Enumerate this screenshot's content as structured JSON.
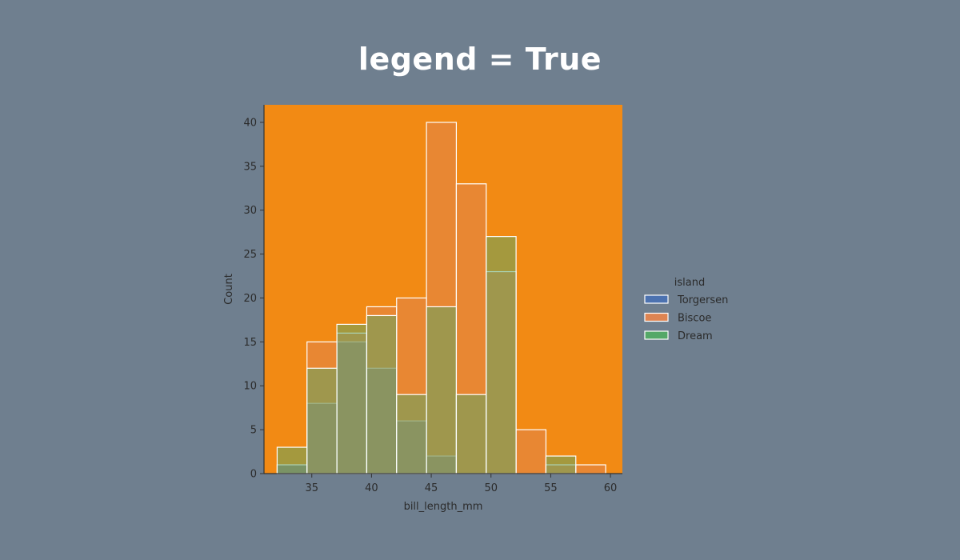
{
  "page": {
    "title": "legend = True",
    "background": "#6f7f8f"
  },
  "chart_data": {
    "type": "histogram",
    "multiple": "layer",
    "xlabel": "bill_length_mm",
    "ylabel": "Count",
    "xlim": [
      31,
      61
    ],
    "ylim": [
      0,
      42
    ],
    "xticks": [
      35,
      40,
      45,
      50,
      55,
      60
    ],
    "yticks": [
      0,
      5,
      10,
      15,
      20,
      25,
      30,
      35,
      40
    ],
    "bin_edges": [
      32.1,
      34.6,
      37.1,
      39.6,
      42.1,
      44.6,
      47.1,
      49.6,
      52.1,
      54.6,
      57.1,
      59.6
    ],
    "grid": false,
    "plot_background": "#f28a14",
    "bar_edge_color": "#ffffff",
    "legend": {
      "title": "island",
      "placement": "right"
    },
    "series": [
      {
        "name": "Torgersen",
        "color": "#4c72b0",
        "values": [
          1,
          8,
          15,
          12,
          6,
          2,
          0,
          0,
          0,
          0,
          0
        ]
      },
      {
        "name": "Biscoe",
        "color": "#dd8452",
        "values": [
          0,
          15,
          16,
          19,
          20,
          40,
          33,
          23,
          5,
          1,
          1
        ]
      },
      {
        "name": "Dream",
        "color": "#55a868",
        "values": [
          3,
          12,
          17,
          18,
          9,
          19,
          9,
          27,
          0,
          2,
          0
        ]
      }
    ]
  }
}
